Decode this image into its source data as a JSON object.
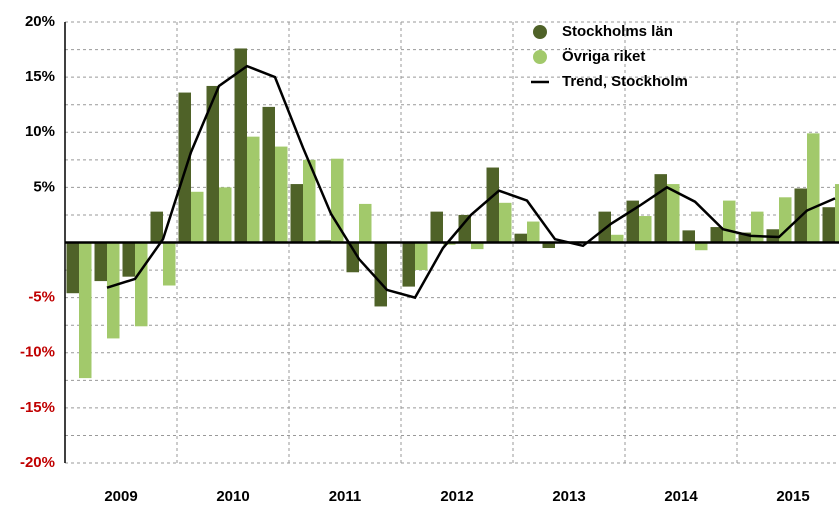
{
  "chart_data": {
    "type": "bar",
    "categories": [
      "2009",
      null,
      null,
      null,
      "2010",
      null,
      null,
      null,
      "2011",
      null,
      null,
      null,
      "2012",
      null,
      null,
      null,
      "2013",
      null,
      null,
      null,
      "2014",
      null,
      null,
      null,
      "2015",
      null,
      null,
      null
    ],
    "series": [
      {
        "name": "Stockholms län",
        "color": "#4f6228",
        "values": [
          -4.6,
          -3.5,
          -3.1,
          2.8,
          13.6,
          14.2,
          17.6,
          12.3,
          5.3,
          0.2,
          -2.7,
          -5.8,
          -4.0,
          2.8,
          2.5,
          6.8,
          0.8,
          -0.5,
          0.1,
          2.8,
          3.8,
          6.2,
          1.1,
          1.4,
          0.9,
          1.2,
          4.9,
          3.2
        ]
      },
      {
        "name": "Övriga riket",
        "color": "#a2c96b",
        "values": [
          -12.3,
          -8.7,
          -7.6,
          -3.9,
          4.6,
          5.0,
          9.6,
          8.7,
          7.5,
          7.6,
          3.5,
          0.1,
          -2.5,
          -0.2,
          -0.6,
          3.6,
          1.9,
          0.1,
          0.1,
          0.7,
          2.4,
          5.3,
          -0.7,
          3.8,
          2.8,
          4.1,
          9.9,
          5.3
        ]
      },
      {
        "name": "Trend, Stockholm",
        "type": "line",
        "color": "#000000",
        "values": [
          null,
          -4.1,
          -3.3,
          0.3,
          8.2,
          14.2,
          16.0,
          15.0,
          8.6,
          2.6,
          -1.5,
          -4.3,
          -5.0,
          -0.5,
          2.5,
          4.7,
          3.8,
          0.3,
          -0.3,
          1.7,
          3.3,
          5.0,
          3.7,
          1.2,
          0.6,
          0.5,
          2.9,
          4.0
        ]
      }
    ],
    "ylim": [
      -20,
      20
    ],
    "yticks": [
      {
        "value": -20,
        "label": "-20%"
      },
      {
        "value": -15,
        "label": "-15%"
      },
      {
        "value": -10,
        "label": "-10%"
      },
      {
        "value": -5,
        "label": "-5%"
      },
      {
        "value": 5,
        "label": "5%"
      },
      {
        "value": 10,
        "label": "10%"
      },
      {
        "value": 15,
        "label": "15%"
      },
      {
        "value": 20,
        "label": "20%"
      }
    ],
    "y_minor_ticks": [
      -17.5,
      -12.5,
      -7.5,
      -2.5,
      2.5,
      7.5,
      12.5,
      17.5
    ],
    "negative_tick_color": "#c00000",
    "grid": true,
    "legend": "upper right"
  }
}
